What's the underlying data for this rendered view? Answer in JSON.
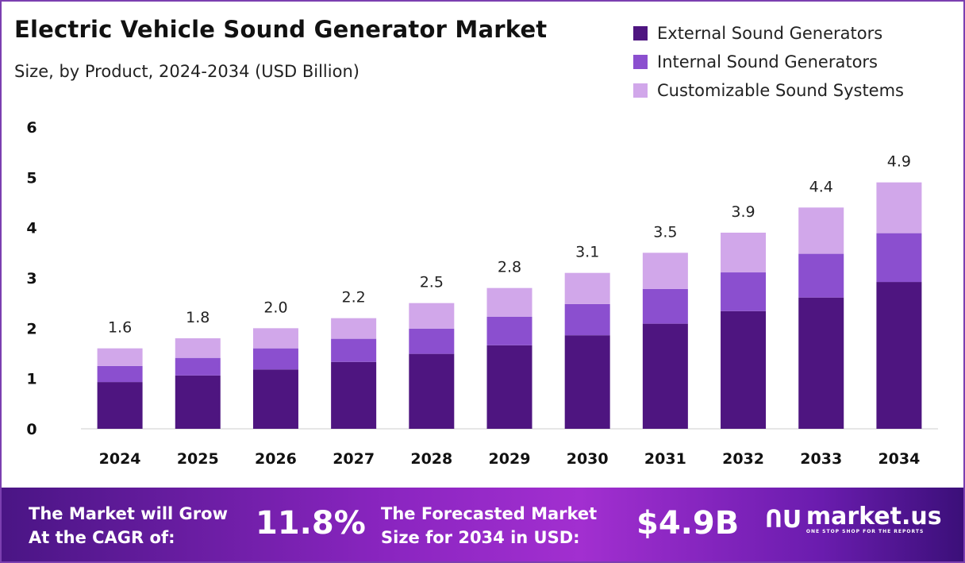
{
  "chart_data": {
    "type": "bar",
    "stacked": true,
    "title": "Electric Vehicle Sound Generator Market",
    "subtitle": "Size, by Product, 2024-2034 (USD Billion)",
    "categories": [
      "2024",
      "2025",
      "2026",
      "2027",
      "2028",
      "2029",
      "2030",
      "2031",
      "2032",
      "2033",
      "2034"
    ],
    "series": [
      {
        "name": "External Sound Generators",
        "color": "#4e1580",
        "values": [
          0.93,
          1.06,
          1.18,
          1.33,
          1.49,
          1.66,
          1.86,
          2.09,
          2.34,
          2.61,
          2.92
        ]
      },
      {
        "name": "Internal Sound Generators",
        "color": "#8b4fcf",
        "values": [
          0.32,
          0.35,
          0.42,
          0.46,
          0.5,
          0.57,
          0.62,
          0.69,
          0.77,
          0.87,
          0.97
        ]
      },
      {
        "name": "Customizable Sound Systems",
        "color": "#d1a7ea",
        "values": [
          0.35,
          0.39,
          0.4,
          0.41,
          0.51,
          0.57,
          0.62,
          0.72,
          0.79,
          0.92,
          1.01
        ]
      }
    ],
    "totals": [
      "1.6",
      "1.8",
      "2.0",
      "2.2",
      "2.5",
      "2.8",
      "3.1",
      "3.5",
      "3.9",
      "4.4",
      "4.9"
    ],
    "yticks": [
      "0",
      "1",
      "2",
      "3",
      "4",
      "5",
      "6"
    ],
    "ylim": [
      0,
      6
    ],
    "grid": false,
    "legend": "top-right"
  },
  "footer": {
    "cagr_label_1": "The Market will Grow",
    "cagr_label_2": "At the CAGR of:",
    "cagr_value": "11.8%",
    "size_label_1": "The Forecasted Market",
    "size_label_2": "Size for 2034 in USD:",
    "size_value": "$4.9B",
    "logo_name": "market.us",
    "logo_tagline": "ONE STOP SHOP FOR THE REPORTS"
  }
}
